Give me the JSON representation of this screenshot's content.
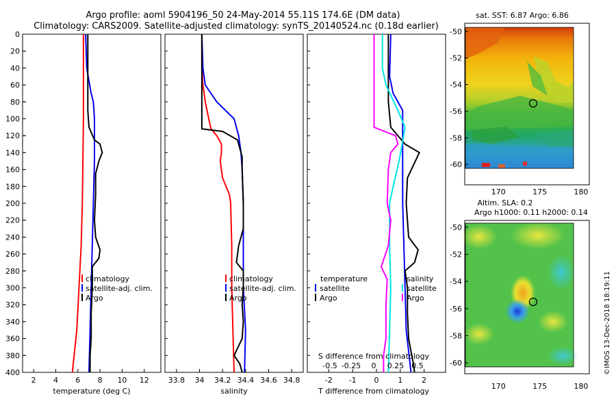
{
  "title": {
    "line1": "Argo profile: aoml 5904196_50 24-May-2014 55.11S 174.6E (DM data)",
    "line2": "Climatology: CARS2009. Satellite-adjusted climatology: synTS_20140524.nc (0.18d earlier)"
  },
  "colors": {
    "climatology": "#ff0000",
    "satellite": "#0000ee",
    "argo": "#000000",
    "s_diff": "#ff00ff",
    "t_diff": "#00e5e5"
  },
  "depth_axis": {
    "range": [
      0,
      400
    ],
    "ticks": [
      "0",
      "20",
      "40",
      "60",
      "80",
      "100",
      "120",
      "140",
      "160",
      "180",
      "200",
      "220",
      "240",
      "260",
      "280",
      "300",
      "320",
      "340",
      "360",
      "380",
      "400"
    ]
  },
  "chart_data": [
    {
      "type": "line",
      "name": "temperature",
      "xlabel": "temperature (deg C)",
      "xlim": [
        1,
        13.5
      ],
      "xticks": [
        "2",
        "4",
        "6",
        "8",
        "10",
        "12"
      ],
      "legend": [
        "climatology",
        "satellite-adj. clim.",
        "Argo"
      ],
      "series": [
        {
          "name": "climatology",
          "color": "#ff0000",
          "points": [
            [
              6.5,
              0
            ],
            [
              6.5,
              100
            ],
            [
              6.45,
              150
            ],
            [
              6.4,
              200
            ],
            [
              6.3,
              250
            ],
            [
              6.1,
              300
            ],
            [
              5.9,
              350
            ],
            [
              5.5,
              400
            ]
          ]
        },
        {
          "name": "satellite-adj. clim.",
          "color": "#0000ee",
          "points": [
            [
              6.7,
              0
            ],
            [
              6.8,
              40
            ],
            [
              7.2,
              70
            ],
            [
              7.4,
              80
            ],
            [
              7.5,
              100
            ],
            [
              7.5,
              150
            ],
            [
              7.4,
              200
            ],
            [
              7.3,
              250
            ],
            [
              7.2,
              300
            ],
            [
              7.1,
              350
            ],
            [
              7.0,
              400
            ]
          ]
        },
        {
          "name": "Argo",
          "color": "#000000",
          "points": [
            [
              6.9,
              0
            ],
            [
              6.9,
              90
            ],
            [
              7.0,
              110
            ],
            [
              7.5,
              125
            ],
            [
              8.0,
              130
            ],
            [
              8.2,
              140
            ],
            [
              7.9,
              150
            ],
            [
              7.6,
              165
            ],
            [
              7.6,
              190
            ],
            [
              7.5,
              220
            ],
            [
              7.6,
              240
            ],
            [
              8.0,
              255
            ],
            [
              7.9,
              265
            ],
            [
              7.3,
              275
            ],
            [
              7.3,
              300
            ],
            [
              7.2,
              330
            ],
            [
              7.2,
              360
            ],
            [
              7.1,
              380
            ],
            [
              7.1,
              400
            ]
          ]
        }
      ]
    },
    {
      "type": "line",
      "name": "salinity",
      "xlabel": "salinity",
      "xlim": [
        33.7,
        34.9
      ],
      "xticks": [
        "33.8",
        "34",
        "34.2",
        "34.4",
        "34.6",
        "34.8"
      ],
      "legend": [
        "climatology",
        "satellite-adj. clim.",
        "Argo"
      ],
      "series": [
        {
          "name": "climatology",
          "color": "#ff0000",
          "points": [
            [
              34.02,
              0
            ],
            [
              34.02,
              40
            ],
            [
              34.03,
              60
            ],
            [
              34.05,
              80
            ],
            [
              34.08,
              100
            ],
            [
              34.1,
              112
            ],
            [
              34.15,
              120
            ],
            [
              34.19,
              130
            ],
            [
              34.19,
              140
            ],
            [
              34.18,
              150
            ],
            [
              34.2,
              170
            ],
            [
              34.26,
              190
            ],
            [
              34.27,
              200
            ],
            [
              34.28,
              250
            ],
            [
              34.28,
              300
            ],
            [
              34.29,
              350
            ],
            [
              34.3,
              400
            ]
          ]
        },
        {
          "name": "satellite-adj. clim.",
          "color": "#0000ee",
          "points": [
            [
              34.02,
              0
            ],
            [
              34.03,
              40
            ],
            [
              34.05,
              60
            ],
            [
              34.15,
              80
            ],
            [
              34.3,
              100
            ],
            [
              34.34,
              120
            ],
            [
              34.36,
              140
            ],
            [
              34.37,
              160
            ],
            [
              34.38,
              200
            ],
            [
              34.38,
              250
            ],
            [
              34.38,
              300
            ],
            [
              34.4,
              350
            ],
            [
              34.39,
              400
            ]
          ]
        },
        {
          "name": "Argo",
          "color": "#000000",
          "points": [
            [
              34.02,
              0
            ],
            [
              34.02,
              112
            ],
            [
              34.2,
              115
            ],
            [
              34.33,
              125
            ],
            [
              34.35,
              135
            ],
            [
              34.37,
              145
            ],
            [
              34.37,
              160
            ],
            [
              34.38,
              200
            ],
            [
              34.38,
              230
            ],
            [
              34.34,
              250
            ],
            [
              34.32,
              270
            ],
            [
              34.38,
              280
            ],
            [
              34.38,
              300
            ],
            [
              34.37,
              320
            ],
            [
              34.38,
              340
            ],
            [
              34.37,
              360
            ],
            [
              34.3,
              380
            ],
            [
              34.35,
              390
            ],
            [
              34.37,
              400
            ]
          ]
        }
      ]
    },
    {
      "type": "line",
      "name": "difference",
      "xlabel": "T difference from climatology",
      "top_xlabel": "S difference from climatology",
      "xlim": [
        -2.9,
        2.9
      ],
      "xticks": [
        "-2",
        "-1",
        "0",
        "1",
        "2"
      ],
      "top_xticks": [
        "-0.5",
        "-0.25",
        "0",
        "0.25",
        "0.5"
      ],
      "legend_temperature": [
        "temperature",
        "satellite",
        "Argo"
      ],
      "legend_salinity": [
        "salinity",
        "satellite",
        "Argo"
      ],
      "series": [
        {
          "name": "T satellite",
          "color": "#0000ee",
          "points": [
            [
              0.6,
              0
            ],
            [
              0.55,
              50
            ],
            [
              0.7,
              70
            ],
            [
              1.1,
              90
            ],
            [
              1.1,
              150
            ],
            [
              1.1,
              200
            ],
            [
              1.15,
              250
            ],
            [
              1.2,
              300
            ],
            [
              1.25,
              350
            ],
            [
              1.45,
              400
            ]
          ]
        },
        {
          "name": "T Argo",
          "color": "#000000",
          "points": [
            [
              0.5,
              0
            ],
            [
              0.5,
              80
            ],
            [
              0.6,
              110
            ],
            [
              1.2,
              130
            ],
            [
              1.8,
              140
            ],
            [
              1.55,
              155
            ],
            [
              1.3,
              170
            ],
            [
              1.25,
              200
            ],
            [
              1.35,
              240
            ],
            [
              1.75,
              255
            ],
            [
              1.6,
              270
            ],
            [
              1.2,
              280
            ],
            [
              1.3,
              300
            ],
            [
              1.3,
              330
            ],
            [
              1.35,
              360
            ],
            [
              1.55,
              390
            ],
            [
              1.6,
              400
            ]
          ]
        },
        {
          "name": "S satellite",
          "color": "#00e5e5",
          "points": [
            [
              0.25,
              0
            ],
            [
              0.25,
              40
            ],
            [
              0.4,
              60
            ],
            [
              0.9,
              90
            ],
            [
              1.2,
              110
            ],
            [
              0.95,
              150
            ],
            [
              0.7,
              180
            ],
            [
              0.55,
              200
            ],
            [
              0.55,
              250
            ],
            [
              0.6,
              300
            ],
            [
              0.55,
              350
            ],
            [
              0.5,
              400
            ]
          ]
        },
        {
          "name": "S Argo",
          "color": "#ff00ff",
          "points": [
            [
              -0.1,
              0
            ],
            [
              -0.1,
              110
            ],
            [
              0.8,
              120
            ],
            [
              0.9,
              130
            ],
            [
              0.6,
              140
            ],
            [
              0.5,
              160
            ],
            [
              0.45,
              200
            ],
            [
              0.6,
              220
            ],
            [
              0.5,
              250
            ],
            [
              0.2,
              275
            ],
            [
              0.45,
              290
            ],
            [
              0.4,
              320
            ],
            [
              0.4,
              360
            ],
            [
              0.3,
              380
            ],
            [
              0.3,
              400
            ]
          ]
        }
      ]
    },
    {
      "type": "heatmap",
      "name": "sst-map",
      "title": "sat. SST: 6.87 Argo: 6.86",
      "xlim": [
        166,
        181
      ],
      "ylim": [
        -60.3,
        -49.7
      ],
      "xticks": [
        "170",
        "175",
        "180"
      ],
      "yticks": [
        "-50",
        "-52",
        "-54",
        "-56",
        "-58",
        "-60"
      ],
      "profile_location": {
        "lon": 174.6,
        "lat": -55.11
      }
    },
    {
      "type": "heatmap",
      "name": "sla-map",
      "title_line1": "Altim. SLA: 0.2",
      "title_line2": "Argo h1000: 0.11 h2000: 0.14",
      "xlim": [
        166,
        181
      ],
      "ylim": [
        -60.3,
        -49.7
      ],
      "xticks": [
        "170",
        "175",
        "180"
      ],
      "yticks": [
        "-50",
        "-52",
        "-54",
        "-56",
        "-58",
        "-60"
      ],
      "profile_location": {
        "lon": 174.6,
        "lat": -55.11
      }
    }
  ],
  "credit": "©IMOS 13-Dec-2018 18:19:11"
}
